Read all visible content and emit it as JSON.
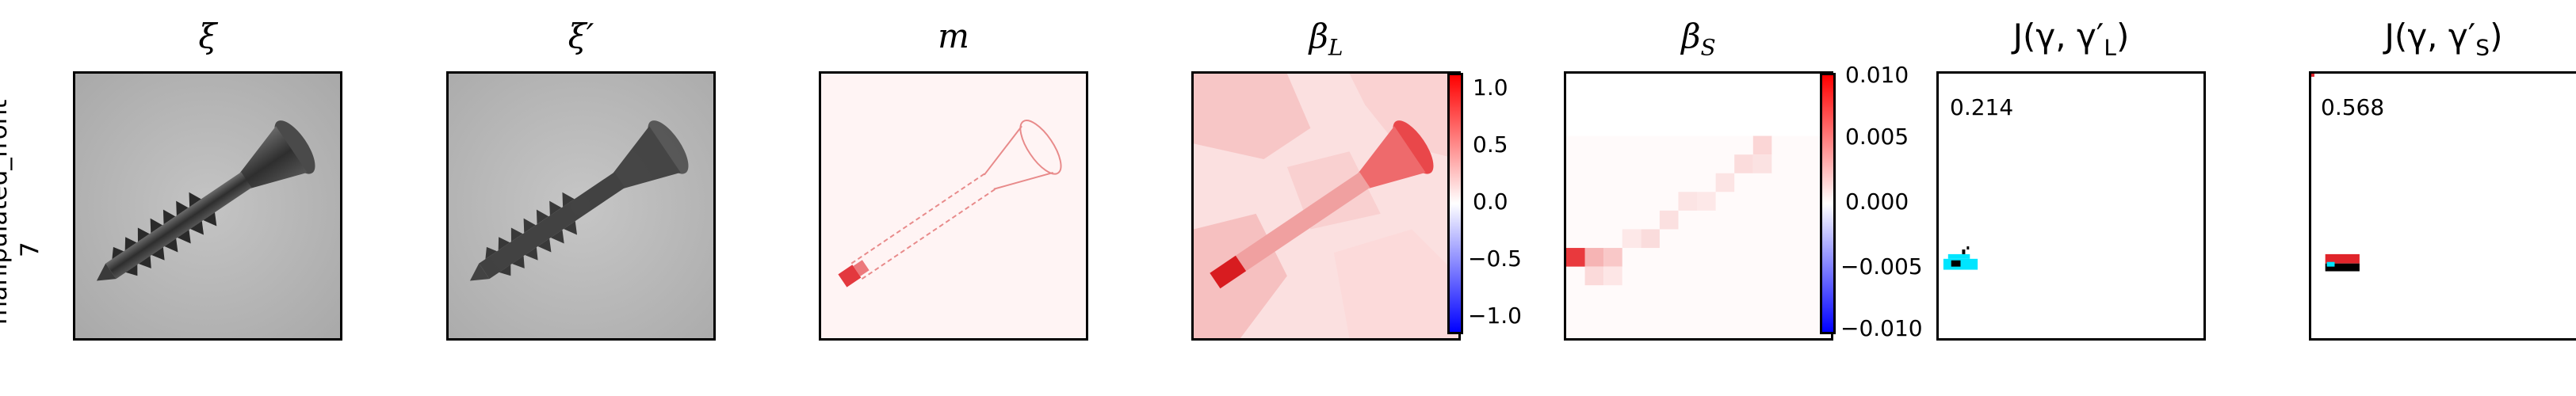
{
  "row": {
    "label_line1": "manipulated_front",
    "label_line2": "7"
  },
  "panels": [
    {
      "title": "ξ"
    },
    {
      "title": "ξ′"
    },
    {
      "title": "m"
    },
    {
      "title": "β",
      "sub": "L"
    },
    {
      "title": "β",
      "sub": "S"
    },
    {
      "title": "J(γ, γ′",
      "sub": "L",
      "close": ")"
    },
    {
      "title": "J(γ, γ′",
      "sub": "S",
      "close": ")"
    }
  ],
  "colorbars": {
    "beta_L": {
      "ticks": [
        "1.0",
        "0.5",
        "0.0",
        "−0.5",
        "−1.0"
      ],
      "colors": {
        "max": "#ff0000",
        "mid": "#ffffff",
        "min": "#0000ff"
      }
    },
    "beta_S": {
      "ticks": [
        "0.010",
        "0.005",
        "0.000",
        "−0.005",
        "−0.010"
      ]
    }
  },
  "jaccard": {
    "L": "0.214",
    "S": "0.568"
  },
  "colors": {
    "grey_bg": "#b9b9b9",
    "screw": "#3a3a3a",
    "mask_red": "#e0242a",
    "cyan": "#00e5ff"
  }
}
